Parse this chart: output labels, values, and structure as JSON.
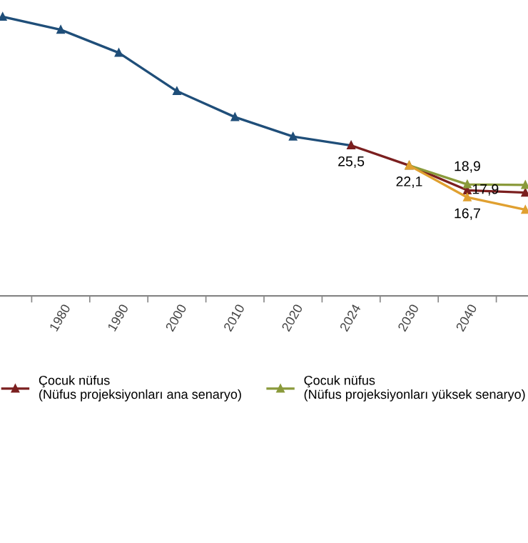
{
  "chart_data": {
    "type": "line",
    "categories": [
      null,
      "1980",
      "1990",
      "2000",
      "2010",
      "2020",
      "2024",
      "2030",
      "2040",
      null
    ],
    "series": [
      {
        "color": "#1f4e79",
        "values": [
          47.3,
          45.1,
          41.2,
          34.7,
          30.3,
          27.0,
          25.5,
          null,
          null,
          null
        ],
        "value_labels": [
          null,
          null,
          null,
          null,
          null,
          null,
          "25,5",
          null,
          null,
          null
        ]
      },
      {
        "name": "Çocuk nüfus\n(Nüfus projeksiyonları ana senaryo)",
        "color": "#7b1f1f",
        "values": [
          null,
          null,
          null,
          null,
          null,
          null,
          25.5,
          22.1,
          17.9,
          17.5
        ],
        "value_labels": [
          null,
          null,
          null,
          null,
          null,
          null,
          null,
          "22,1",
          "17,9",
          null
        ]
      },
      {
        "name": "Çocuk nüfus\n(Nüfus projeksiyonları yüksek senaryo)",
        "color": "#8a9a3b",
        "values": [
          null,
          null,
          null,
          null,
          null,
          null,
          null,
          22.1,
          18.9,
          18.8
        ],
        "value_labels": [
          null,
          null,
          null,
          null,
          null,
          null,
          null,
          null,
          "18,9",
          null
        ]
      },
      {
        "color": "#e0a030",
        "values": [
          null,
          null,
          null,
          null,
          null,
          null,
          null,
          22.1,
          16.7,
          14.6
        ],
        "value_labels": [
          null,
          null,
          null,
          null,
          null,
          null,
          null,
          null,
          "16,7",
          null
        ]
      }
    ],
    "marker": "triangle",
    "grid": false,
    "legend": "bottom",
    "tick_labels": "x"
  }
}
